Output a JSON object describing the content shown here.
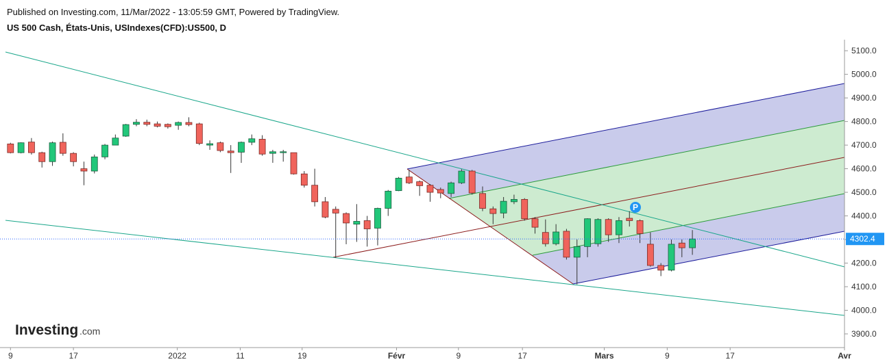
{
  "header": {
    "published": "Published on Investing.com, 11/Mar/2022 - 13:05:59 GMT, Powered by TradingView.",
    "title": "US 500 Cash, États-Unis, USIndexes(CFD):US500, D"
  },
  "logo": {
    "brand": "Investing",
    "suffix": ".com"
  },
  "chart_data": {
    "type": "candlestick",
    "categories": [
      null,
      null,
      null,
      null,
      null,
      null,
      null,
      null,
      null,
      null,
      null,
      null,
      null,
      null,
      null,
      null,
      null,
      null,
      null,
      null,
      null,
      null,
      null,
      null,
      null,
      null,
      null,
      null,
      null,
      null,
      null,
      null,
      null,
      null,
      null,
      null,
      null,
      null,
      null,
      null,
      null,
      null,
      null,
      null,
      null,
      null,
      null,
      null,
      null,
      null,
      null,
      null,
      null,
      null,
      null,
      null,
      null,
      null,
      null,
      null,
      null,
      null,
      null,
      null,
      null,
      null
    ],
    "open": [
      4705,
      4668,
      4713,
      4668,
      4630,
      4712,
      4665,
      4600,
      4590,
      4650,
      4700,
      4738,
      4788,
      4797,
      4790,
      4788,
      4784,
      4796,
      4790,
      4700,
      4710,
      4675,
      4670,
      4712,
      4725,
      4665,
      4668,
      4668,
      4578,
      4530,
      4460,
      4428,
      4410,
      4365,
      4380,
      4348,
      4432,
      4507,
      4565,
      4545,
      4530,
      4512,
      4495,
      4540,
      4590,
      4495,
      4430,
      4412,
      4460,
      4470,
      4388,
      4330,
      4282,
      4335,
      4225,
      4270,
      4282,
      4385,
      4320,
      4390,
      4380,
      4280,
      4190,
      4170,
      4285,
      4265
    ],
    "high": [
      4710,
      4712,
      4730,
      4672,
      4715,
      4750,
      4670,
      4630,
      4660,
      4705,
      4745,
      4790,
      4810,
      4808,
      4800,
      4792,
      4800,
      4818,
      4795,
      4720,
      4715,
      4700,
      4715,
      4745,
      4742,
      4680,
      4680,
      4668,
      4590,
      4600,
      4480,
      4440,
      4415,
      4450,
      4400,
      4435,
      4510,
      4565,
      4595,
      4550,
      4535,
      4520,
      4545,
      4598,
      4595,
      4525,
      4440,
      4480,
      4490,
      4475,
      4395,
      4385,
      4365,
      4345,
      4300,
      4390,
      4390,
      4390,
      4395,
      4420,
      4385,
      4330,
      4200,
      4300,
      4300,
      4340
    ],
    "low": [
      4665,
      4665,
      4660,
      4605,
      4612,
      4655,
      4610,
      4530,
      4580,
      4640,
      4700,
      4735,
      4780,
      4780,
      4775,
      4770,
      4765,
      4780,
      4700,
      4680,
      4670,
      4582,
      4625,
      4700,
      4655,
      4625,
      4630,
      4575,
      4520,
      4440,
      4390,
      4222,
      4280,
      4290,
      4270,
      4275,
      4400,
      4505,
      4535,
      4485,
      4460,
      4475,
      4480,
      4535,
      4490,
      4420,
      4365,
      4390,
      4450,
      4380,
      4325,
      4270,
      4275,
      4215,
      4110,
      4225,
      4270,
      4290,
      4285,
      4355,
      4285,
      4185,
      4145,
      4165,
      4225,
      4235
    ],
    "close": [
      4668,
      4710,
      4668,
      4630,
      4710,
      4665,
      4630,
      4590,
      4650,
      4700,
      4730,
      4787,
      4797,
      4788,
      4780,
      4778,
      4796,
      4787,
      4707,
      4706,
      4677,
      4668,
      4712,
      4727,
      4662,
      4672,
      4672,
      4578,
      4530,
      4460,
      4395,
      4412,
      4370,
      4377,
      4345,
      4432,
      4505,
      4560,
      4540,
      4528,
      4500,
      4497,
      4540,
      4590,
      4497,
      4432,
      4410,
      4462,
      4470,
      4388,
      4352,
      4282,
      4332,
      4225,
      4270,
      4388,
      4385,
      4320,
      4380,
      4380,
      4325,
      4190,
      4170,
      4280,
      4265,
      4302.4
    ],
    "up_color": "#22c77a",
    "down_color": "#f0645c",
    "last_price": 4302.4,
    "xlim": [
      -1,
      79.5
    ],
    "xticks": [
      {
        "value": 0,
        "label": "9"
      },
      {
        "value": 6,
        "label": "17"
      },
      {
        "value": 15.9,
        "label": "2022"
      },
      {
        "value": 21.9,
        "label": "11"
      },
      {
        "value": 27.8,
        "label": "19"
      },
      {
        "value": 36.8,
        "label": "Févr"
      },
      {
        "value": 42.7,
        "label": "9"
      },
      {
        "value": 48.8,
        "label": "17"
      },
      {
        "value": 56.6,
        "label": "Mars"
      },
      {
        "value": 62.6,
        "label": "9"
      },
      {
        "value": 68.6,
        "label": "17"
      },
      {
        "value": 79.5,
        "label": "Avr"
      }
    ],
    "ylim": [
      3842,
      5141
    ],
    "yticks": [
      {
        "value": 3900,
        "label": "3900.0"
      },
      {
        "value": 4000,
        "label": "4000.0"
      },
      {
        "value": 4100,
        "label": "4100.0"
      },
      {
        "value": 4200,
        "label": "4200.0"
      },
      {
        "value": 4300,
        "label": "4300.0"
      },
      {
        "value": 4400,
        "label": "4400.0"
      },
      {
        "value": 4500,
        "label": "4500.0"
      },
      {
        "value": 4600,
        "label": "4600.0"
      },
      {
        "value": 4700,
        "label": "4700.0"
      },
      {
        "value": 4800,
        "label": "4800.0"
      },
      {
        "value": 4900,
        "label": "4900.0"
      },
      {
        "value": 5000,
        "label": "5000.0"
      },
      {
        "value": 5100,
        "label": "5100.0"
      }
    ]
  }
}
